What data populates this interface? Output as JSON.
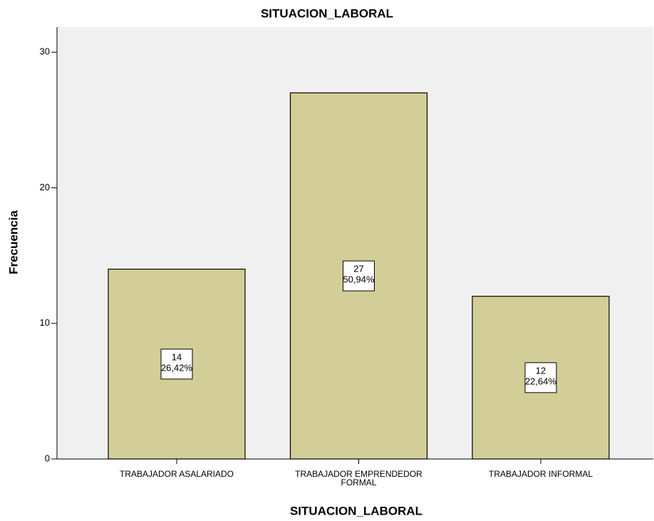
{
  "chart_data": {
    "type": "bar",
    "title": "SITUACION_LABORAL",
    "x_label": "SITUACION_LABORAL",
    "y_label": "Frecuencia",
    "categories": [
      "TRABAJADOR ASALARIADO",
      "TRABAJADOR EMPRENDEDOR FORMAL",
      "TRABAJADOR INFORMAL"
    ],
    "values": [
      14,
      27,
      12
    ],
    "percent_labels": [
      "26,42%",
      "50,94%",
      "22,64%"
    ],
    "color": "#d3ce97",
    "ylim": [
      0,
      31.85
    ],
    "yticks": [
      0,
      10,
      20,
      30
    ],
    "grid": false
  }
}
